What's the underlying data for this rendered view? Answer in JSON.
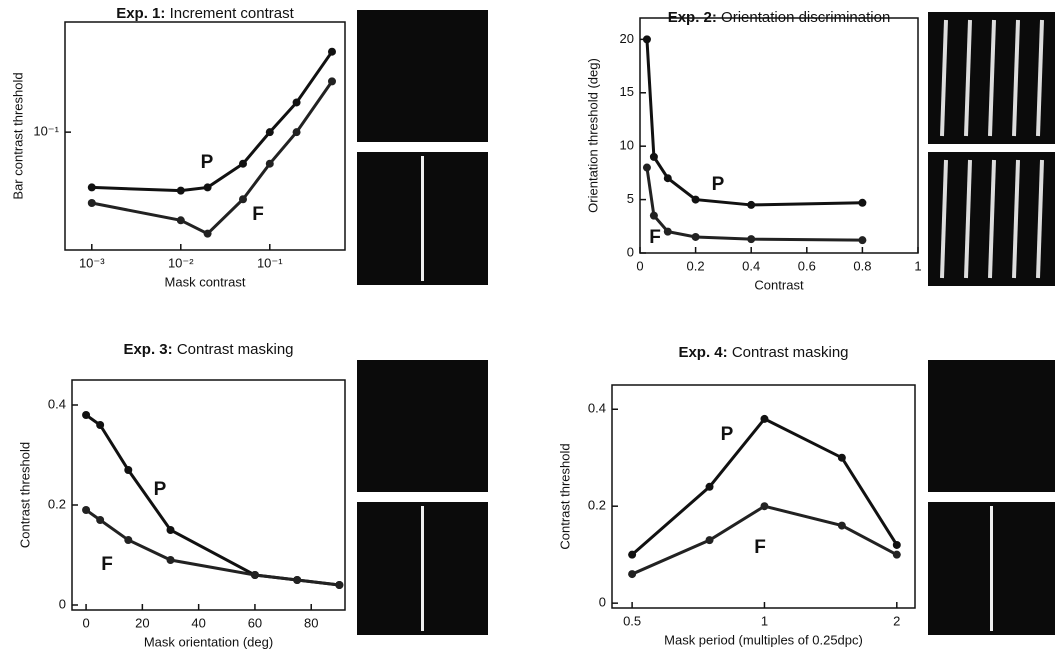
{
  "chart_data": [
    {
      "type": "line",
      "title_prefix": "Exp. 1:",
      "title": "Increment contrast",
      "xlabel": "Mask contrast",
      "ylabel": "Bar contrast threshold",
      "xscale": "log",
      "yscale": "log",
      "xlim": [
        0.0005,
        0.7
      ],
      "ylim": [
        0.02,
        0.45
      ],
      "xticks": [
        {
          "value": 0.001,
          "label": "10⁻³"
        },
        {
          "value": 0.01,
          "label": "10⁻²"
        },
        {
          "value": 0.1,
          "label": "10⁻¹"
        }
      ],
      "yticks": [
        {
          "value": 0.1,
          "label": "10⁻¹"
        }
      ],
      "x": [
        0.001,
        0.01,
        0.02,
        0.05,
        0.1,
        0.2,
        0.5
      ],
      "series": [
        {
          "name": "P",
          "color": "#111111",
          "values": [
            0.047,
            0.045,
            0.047,
            0.065,
            0.1,
            0.15,
            0.3
          ]
        },
        {
          "name": "F",
          "color": "#222222",
          "values": [
            0.038,
            0.03,
            0.025,
            0.04,
            0.065,
            0.1,
            0.2
          ]
        }
      ]
    },
    {
      "type": "line",
      "title_prefix": "Exp. 2:",
      "title": "Orientation discrimination",
      "xlabel": "Contrast",
      "ylabel": "Orientation threshold (deg)",
      "xlim": [
        0,
        1
      ],
      "ylim": [
        0,
        22
      ],
      "xticks": [
        0,
        0.2,
        0.4,
        0.6,
        0.8,
        1
      ],
      "yticks": [
        0,
        5,
        10,
        15,
        20
      ],
      "x": [
        0.025,
        0.05,
        0.1,
        0.2,
        0.4,
        0.8
      ],
      "series": [
        {
          "name": "P",
          "color": "#111111",
          "values": [
            20,
            9,
            7,
            5,
            4.5,
            4.7
          ]
        },
        {
          "name": "F",
          "color": "#222222",
          "values": [
            8,
            3.5,
            2,
            1.5,
            1.3,
            1.2
          ]
        }
      ]
    },
    {
      "type": "line",
      "title_prefix": "Exp. 3:",
      "title": "Contrast masking",
      "xlabel": "Mask orientation (deg)",
      "ylabel": "Contrast threshold",
      "xlim": [
        -5,
        92
      ],
      "ylim": [
        -0.01,
        0.45
      ],
      "xticks": [
        0,
        20,
        40,
        60,
        80
      ],
      "yticks": [
        0,
        0.2,
        0.4
      ],
      "x": [
        0,
        5,
        15,
        30,
        60,
        75,
        90
      ],
      "series": [
        {
          "name": "P",
          "color": "#111111",
          "values": [
            0.38,
            0.36,
            0.27,
            0.15,
            0.06,
            0.05,
            0.04
          ]
        },
        {
          "name": "F",
          "color": "#222222",
          "values": [
            0.19,
            0.17,
            0.13,
            0.09,
            0.06,
            0.05,
            0.04
          ]
        }
      ]
    },
    {
      "type": "line",
      "title_prefix": "Exp. 4:",
      "title": "Contrast masking",
      "xlabel": "Mask period (multiples of 0.25dpc)",
      "ylabel": "Contrast threshold",
      "xscale": "log",
      "xlim": [
        0.45,
        2.2
      ],
      "ylim": [
        -0.01,
        0.45
      ],
      "xticks": [
        0.5,
        1,
        2
      ],
      "yticks": [
        0,
        0.2,
        0.4
      ],
      "x": [
        0.5,
        0.75,
        1,
        1.5,
        2
      ],
      "series": [
        {
          "name": "P",
          "color": "#111111",
          "values": [
            0.1,
            0.24,
            0.38,
            0.3,
            0.12
          ]
        },
        {
          "name": "F",
          "color": "#222222",
          "values": [
            0.06,
            0.13,
            0.2,
            0.16,
            0.1
          ]
        }
      ]
    }
  ]
}
